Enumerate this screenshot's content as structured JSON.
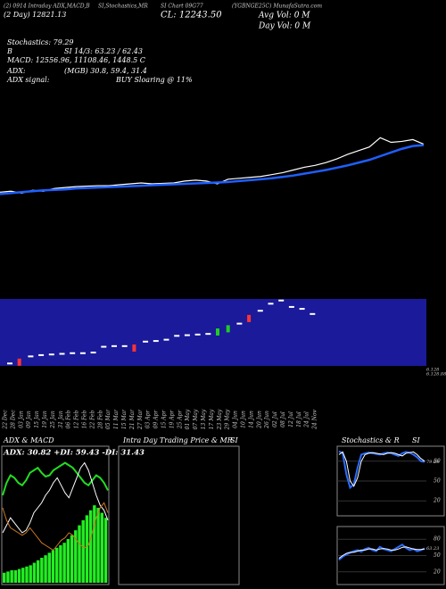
{
  "header": {
    "title_parts": [
      "(2) 0914 Intraday ADX,MACD,B",
      "SI,Stochastics,MR",
      "SI Chart 09G77",
      "(YGBNGE25C) MunafaSutra.com"
    ],
    "day_range": "(2 Day) 12821.13",
    "close": "CL: 12243.50",
    "avg_vol": "Avg Vol: 0  M",
    "day_vol": "Day Vol: 0  M",
    "stochastics": "Stochastics: 79.29",
    "si": "SI 14/3: 63.23 / 62.43",
    "b": "B",
    "macd": "MACD: 12556.96, 11108.46, 1448.5 C",
    "adx": "ADX:",
    "adx_values": "(MGB) 30.8, 59.4, 31.4",
    "adx_signal": "ADX  signal:",
    "signal": "BUY Sloaring @ 11%"
  },
  "chart_data": [
    {
      "type": "line",
      "ylim": [
        10000,
        13000
      ],
      "categories": [
        "22 Dec",
        "28 Dec",
        "03 Jan",
        "09 Jan",
        "15 Jan",
        "19 Jan",
        "25 Jan",
        "31 Jan",
        "06 Feb",
        "12 Feb",
        "16 Feb",
        "22 Feb",
        "28 Feb",
        "05 Mar",
        "11 Mar",
        "15 Mar",
        "21 Mar",
        "27 Mar",
        "03 Apr",
        "09 Apr",
        "15 Apr",
        "19 Apr",
        "25 Apr",
        "01 May",
        "07 May",
        "13 May",
        "17 May",
        "23 May",
        "29 May",
        "04 Jun",
        "10 Jun",
        "14 Jun",
        "20 Jun",
        "26 Jun",
        "02 Jul",
        "08 Jul",
        "12 Jul",
        "18 Jul",
        "24 Jul",
        "24 Nov"
      ],
      "series": [
        {
          "color": "#ffffff",
          "values": [
            11110,
            11120,
            11100,
            11130,
            11120,
            11150,
            11160,
            11170,
            11175,
            11180,
            11180,
            11190,
            11200,
            11210,
            11200,
            11205,
            11210,
            11230,
            11240,
            11230,
            11200,
            11250,
            11260,
            11270,
            11280,
            11300,
            11320,
            11350,
            11380,
            11400,
            11430,
            11470,
            11520,
            11560,
            11600,
            11700,
            11650,
            11660,
            11680,
            11630
          ]
        },
        {
          "color": "#1f5fff",
          "values": [
            11090,
            11100,
            11110,
            11120,
            11130,
            11135,
            11140,
            11150,
            11155,
            11160,
            11165,
            11170,
            11175,
            11180,
            11185,
            11190,
            11195,
            11200,
            11205,
            11210,
            11215,
            11220,
            11230,
            11240,
            11250,
            11260,
            11275,
            11290,
            11310,
            11330,
            11350,
            11375,
            11400,
            11430,
            11460,
            11500,
            11540,
            11580,
            11610,
            11620
          ]
        }
      ]
    },
    {
      "type": "marker",
      "ylim": [
        0,
        10
      ],
      "side_labels": [
        "6.128",
        "6.128.88"
      ],
      "values": [
        0.1,
        0.3,
        1.2,
        1.4,
        1.5,
        1.6,
        1.7,
        1.7,
        1.8,
        2.7,
        2.8,
        2.8,
        2.5,
        3.5,
        3.6,
        3.8,
        4.4,
        4.5,
        4.6,
        4.7,
        5.0,
        5.5,
        6.3,
        7.1,
        8.3,
        9.4,
        9.9,
        8.9,
        8.6,
        7.8
      ],
      "colors": [
        "#ffffff",
        "#ff3333",
        "#ffffff",
        "#ffffff",
        "#ffffff",
        "#ffffff",
        "#ffffff",
        "#ffffff",
        "#ffffff",
        "#ffffff",
        "#ffffff",
        "#ffffff",
        "#ff3333",
        "#ffffff",
        "#ffffff",
        "#ffffff",
        "#ffffff",
        "#ffffff",
        "#ffffff",
        "#ffffff",
        "#22cc22",
        "#22cc22",
        "#ffffff",
        "#ff3333",
        "#ffffff",
        "#ffffff",
        "#ffffff",
        "#ffffff",
        "#ffffff",
        "#ffffff"
      ]
    },
    {
      "type": "adx",
      "title": "ADX  & MACD",
      "label": "ADX: 30.82  +DI: 59.43  -DI: 31.43",
      "ylim": [
        0,
        100
      ],
      "histogram": {
        "color": "#22ee22",
        "values": [
          8,
          9,
          10,
          10,
          11,
          12,
          13,
          14,
          16,
          18,
          20,
          22,
          24,
          26,
          28,
          30,
          32,
          35,
          38,
          42,
          46,
          50,
          54,
          58,
          62,
          60,
          56,
          52
        ]
      },
      "series": [
        {
          "color": "#22dd22",
          "values": [
            70,
            80,
            86,
            84,
            80,
            78,
            82,
            88,
            90,
            92,
            88,
            85,
            86,
            90,
            92,
            94,
            96,
            94,
            92,
            88,
            84,
            80,
            78,
            82,
            86,
            84,
            80,
            74
          ]
        },
        {
          "color": "#ffffff",
          "values": [
            40,
            46,
            52,
            48,
            44,
            40,
            42,
            48,
            56,
            60,
            64,
            70,
            74,
            80,
            84,
            78,
            72,
            68,
            76,
            84,
            92,
            96,
            90,
            80,
            70,
            62,
            58,
            50
          ]
        },
        {
          "color": "#cc7722",
          "values": [
            60,
            50,
            44,
            42,
            40,
            38,
            40,
            44,
            40,
            36,
            32,
            30,
            28,
            26,
            30,
            34,
            36,
            40,
            38,
            34,
            30,
            28,
            30,
            40,
            52,
            60,
            64,
            56
          ]
        }
      ]
    },
    {
      "type": "empty",
      "title": "Intra Day Trading Price  & MR",
      "suffix": "SI"
    },
    {
      "type": "oscillator",
      "title": "Stochastics & R",
      "suffix": "SI",
      "ylim": [
        0,
        100
      ],
      "yticks": [
        80,
        50,
        20
      ],
      "value_label": "79.29",
      "series": [
        {
          "color": "#2a6cff",
          "values": [
            95,
            92,
            60,
            40,
            45,
            70,
            90,
            92,
            93,
            92,
            91,
            90,
            92,
            93,
            92,
            90,
            88,
            92,
            94,
            93,
            90,
            86,
            80,
            79
          ]
        },
        {
          "color": "#ffffff",
          "values": [
            90,
            94,
            80,
            50,
            42,
            55,
            80,
            90,
            92,
            93,
            92,
            91,
            90,
            92,
            93,
            92,
            90,
            88,
            92,
            93,
            94,
            90,
            84,
            80
          ]
        }
      ]
    },
    {
      "type": "oscillator",
      "ylim": [
        0,
        100
      ],
      "yticks": [
        80,
        50,
        20
      ],
      "value_label": "63.23",
      "series": [
        {
          "color": "#2a6cff",
          "values": [
            42,
            48,
            52,
            55,
            58,
            60,
            57,
            62,
            64,
            60,
            58,
            66,
            62,
            60,
            58,
            62,
            66,
            70,
            64,
            60,
            62,
            58,
            60,
            63
          ]
        },
        {
          "color": "#ffffff",
          "values": [
            45,
            50,
            54,
            56,
            56,
            58,
            60,
            60,
            62,
            62,
            60,
            62,
            63,
            62,
            60,
            60,
            62,
            65,
            66,
            64,
            62,
            61,
            61,
            62
          ]
        }
      ]
    }
  ]
}
